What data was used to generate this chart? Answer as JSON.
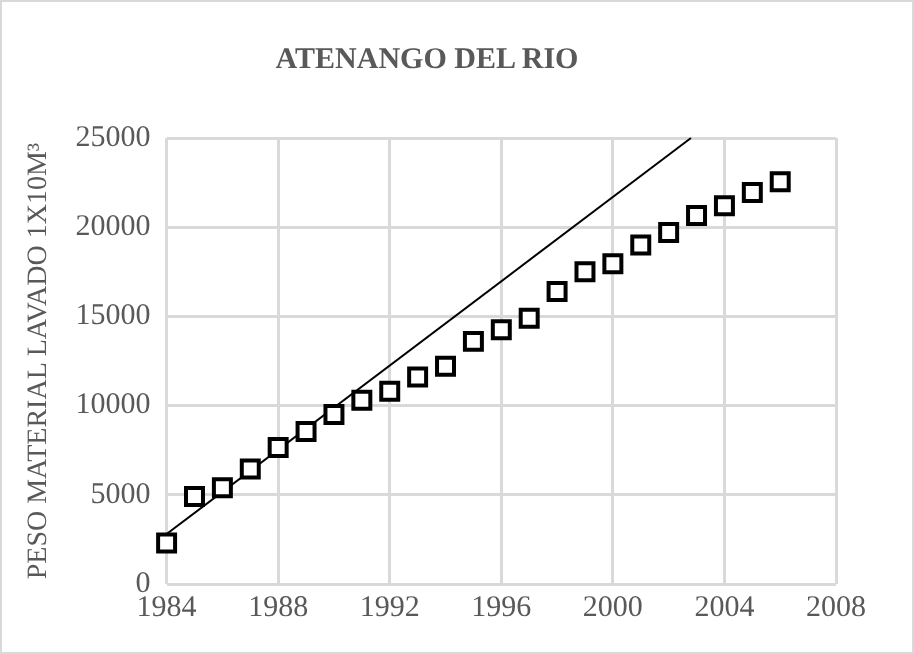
{
  "chart_data": {
    "type": "scatter",
    "title": "ATENANGO DEL RIO",
    "ylabel": "PESO MATERIAL LAVADO 1X10M³",
    "x": [
      1984,
      1985,
      1986,
      1987,
      1988,
      1989,
      1990,
      1991,
      1992,
      1993,
      1994,
      1995,
      1996,
      1997,
      1998,
      1999,
      2000,
      2001,
      2002,
      2003,
      2004,
      2005,
      2006
    ],
    "series": [
      {
        "color": "#000000",
        "marker": "square",
        "values": [
          2300,
          4900,
          5400,
          6450,
          7650,
          8550,
          9500,
          10300,
          10800,
          11600,
          12200,
          13600,
          14250,
          14900,
          16400,
          17500,
          17950,
          19000,
          19700,
          20650,
          21200,
          21950,
          22550
        ]
      },
      {
        "type": "line",
        "color": "#000000",
        "x": [
          1984,
          2002.8
        ],
        "values": [
          2800,
          25000
        ]
      }
    ],
    "xlim": [
      1984,
      2008
    ],
    "xticks": [
      1984,
      1988,
      1992,
      1996,
      2000,
      2004,
      2008
    ],
    "ylim": [
      0,
      25000
    ],
    "yticks": [
      0,
      5000,
      10000,
      15000,
      20000,
      25000
    ],
    "grid": true,
    "legend": false
  }
}
